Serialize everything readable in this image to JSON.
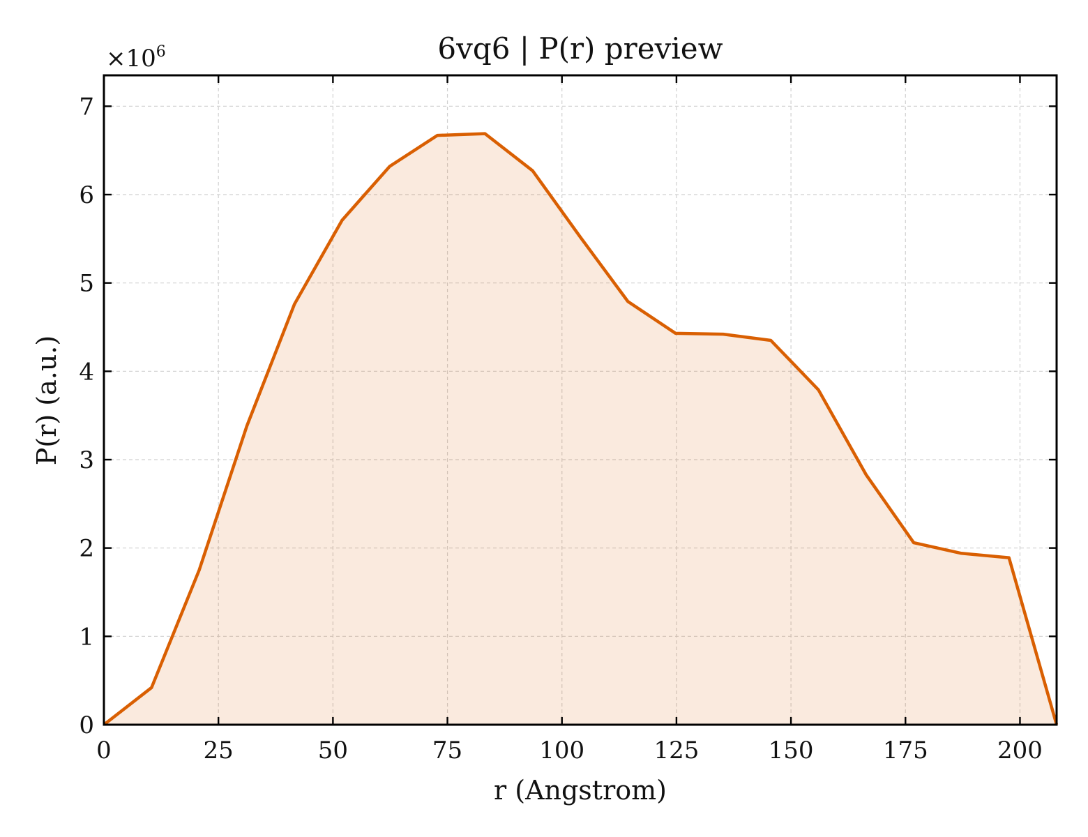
{
  "chart_data": {
    "type": "area",
    "title": "6vq6 | P(r) preview",
    "xlabel": "r (Angstrom)",
    "ylabel": "P(r) (a.u.)",
    "y_multiplier_label": "×10",
    "y_multiplier_exponent": "6",
    "xlim": [
      0,
      208
    ],
    "ylim": [
      0,
      7.35
    ],
    "x_ticks": [
      0,
      25,
      50,
      75,
      100,
      125,
      150,
      175,
      200
    ],
    "y_ticks": [
      0,
      1,
      2,
      3,
      4,
      5,
      6,
      7
    ],
    "grid": true,
    "legend": "none",
    "series": [
      {
        "x": [
          0,
          10.4,
          20.8,
          31.2,
          41.6,
          52.0,
          62.4,
          72.8,
          83.2,
          93.6,
          104.0,
          114.4,
          124.8,
          135.2,
          145.6,
          156.0,
          166.4,
          176.8,
          187.2,
          197.6,
          208.0
        ],
        "y": [
          0,
          0.42,
          1.75,
          3.38,
          4.76,
          5.71,
          6.32,
          6.67,
          6.69,
          6.27,
          5.52,
          4.79,
          4.43,
          4.42,
          4.35,
          3.79,
          2.83,
          2.06,
          1.94,
          1.89,
          0
        ],
        "color": "#d95f02",
        "fill_color": "#d95f02",
        "fill_opacity": 0.13
      }
    ]
  }
}
